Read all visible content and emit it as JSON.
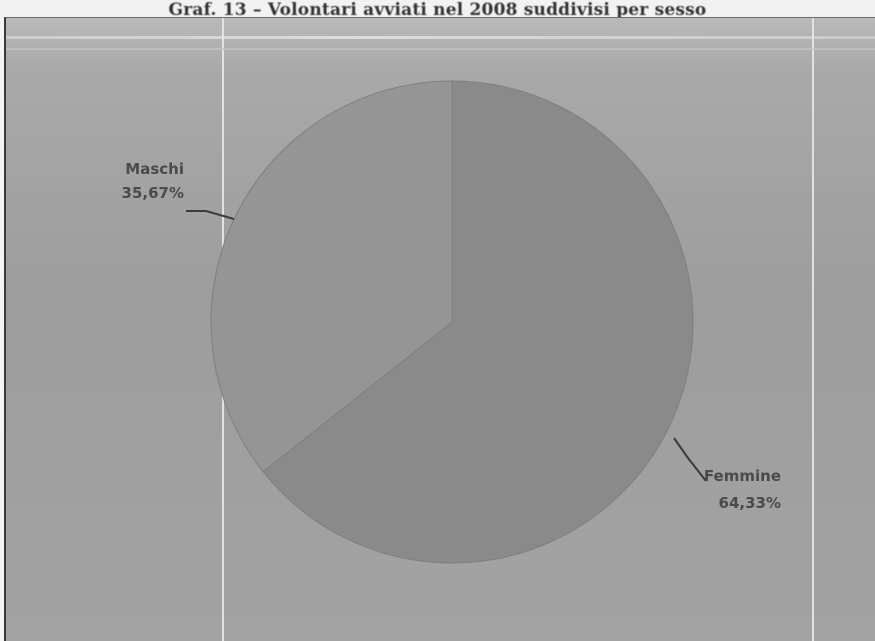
{
  "title": "Graf. 13 – Volontari avviati nel 2008 suddivisi per sesso",
  "chart_data": {
    "type": "pie",
    "title": "Graf. 13 – Volontari avviati nel 2008 suddivisi per sesso",
    "slices": [
      {
        "label": "Femmine",
        "value": 64.33,
        "value_label": "64,33%",
        "color": "#8a8a8a"
      },
      {
        "label": "Maschi",
        "value": 35.67,
        "value_label": "35,67%",
        "color": "#959595"
      }
    ],
    "start_angle_deg": 0,
    "direction": "clockwise",
    "legend": "none"
  },
  "colors": {
    "label_text": "#4a4a4a",
    "leader_line": "#3c3c3c"
  }
}
